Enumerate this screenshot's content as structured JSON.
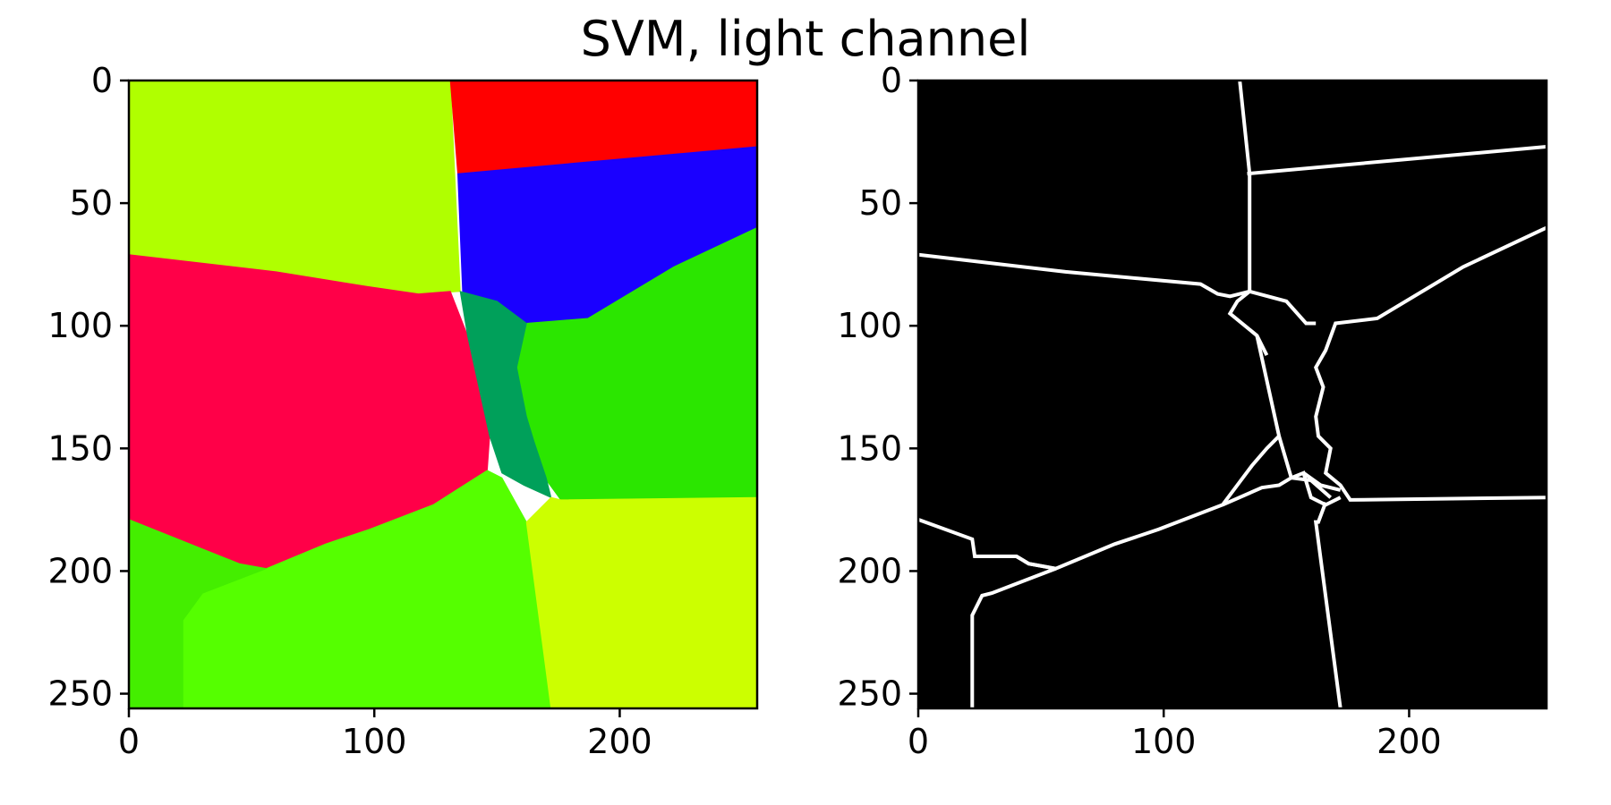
{
  "figure": {
    "title": "SVM, light channel"
  },
  "chart_data": [
    {
      "type": "heatmap",
      "title": "",
      "xlabel": "",
      "ylabel": "",
      "xlim": [
        0,
        256
      ],
      "ylim": [
        256,
        0
      ],
      "x_ticks": [
        0,
        100,
        200
      ],
      "y_ticks": [
        0,
        50,
        100,
        150,
        200,
        250
      ],
      "grid": false,
      "regions": [
        {
          "color": "#b0ff00",
          "points": [
            [
              0,
              0
            ],
            [
              131,
              0
            ],
            [
              135,
              86
            ],
            [
              118,
              87
            ],
            [
              97,
              84
            ],
            [
              60,
              78
            ],
            [
              0,
              71
            ]
          ]
        },
        {
          "color": "#ff0000",
          "points": [
            [
              131,
              0
            ],
            [
              256,
              0
            ],
            [
              256,
              27
            ],
            [
              134,
              38
            ]
          ]
        },
        {
          "color": "#1a00ff",
          "points": [
            [
              134,
              38
            ],
            [
              256,
              27
            ],
            [
              256,
              60
            ],
            [
              222,
              76
            ],
            [
              187,
              97
            ],
            [
              162,
              99
            ],
            [
              150,
              90
            ],
            [
              136,
              86
            ]
          ]
        },
        {
          "color": "#ff0048",
          "points": [
            [
              0,
              71
            ],
            [
              60,
              78
            ],
            [
              97,
              84
            ],
            [
              118,
              87
            ],
            [
              131,
              86
            ],
            [
              138,
              104
            ],
            [
              147,
              145
            ],
            [
              146,
              159
            ],
            [
              124,
              173
            ],
            [
              98,
              183
            ],
            [
              80,
              189
            ],
            [
              56,
              199
            ],
            [
              45,
              197
            ],
            [
              0,
              179
            ]
          ]
        },
        {
          "color": "#2be600",
          "points": [
            [
              162,
              99
            ],
            [
              187,
              97
            ],
            [
              222,
              76
            ],
            [
              256,
              60
            ],
            [
              256,
              170
            ],
            [
              176,
              171
            ],
            [
              168,
              160
            ],
            [
              165,
              147
            ],
            [
              162,
              137
            ],
            [
              158,
              117
            ]
          ]
        },
        {
          "color": "#00a05a",
          "points": [
            [
              135,
              86
            ],
            [
              150,
              90
            ],
            [
              162,
              99
            ],
            [
              158,
              117
            ],
            [
              162,
              137
            ],
            [
              165,
              147
            ],
            [
              170,
              162
            ],
            [
              172,
              170
            ],
            [
              161,
              165
            ],
            [
              152,
              160
            ],
            [
              147,
              145
            ],
            [
              138,
              104
            ]
          ]
        },
        {
          "color": "#55ff00",
          "points": [
            [
              22,
              220
            ],
            [
              22,
              256
            ],
            [
              172,
              256
            ],
            [
              162,
              180
            ],
            [
              152,
              162
            ],
            [
              146,
              159
            ],
            [
              124,
              173
            ],
            [
              98,
              183
            ],
            [
              80,
              189
            ],
            [
              56,
              199
            ],
            [
              30,
              209
            ]
          ]
        },
        {
          "color": "#44ee00",
          "points": [
            [
              0,
              179
            ],
            [
              45,
              197
            ],
            [
              56,
              199
            ],
            [
              30,
              209
            ],
            [
              22,
              220
            ],
            [
              22,
              256
            ],
            [
              0,
              256
            ]
          ]
        },
        {
          "color": "#ccff00",
          "points": [
            [
              162,
              180
            ],
            [
              172,
              170
            ],
            [
              176,
              171
            ],
            [
              256,
              170
            ],
            [
              256,
              256
            ],
            [
              172,
              256
            ]
          ]
        }
      ]
    },
    {
      "type": "heatmap",
      "title": "",
      "xlabel": "",
      "ylabel": "",
      "xlim": [
        0,
        256
      ],
      "ylim": [
        256,
        0
      ],
      "x_ticks": [
        0,
        100,
        200
      ],
      "y_ticks": [
        0,
        50,
        100,
        150,
        200,
        250
      ],
      "grid": false,
      "background": "#000000",
      "line_color": "#ffffff",
      "boundaries": [
        [
          [
            131,
            0
          ],
          [
            135,
            38
          ],
          [
            135,
            86
          ]
        ],
        [
          [
            134,
            38
          ],
          [
            256,
            27
          ]
        ],
        [
          [
            0,
            71
          ],
          [
            60,
            78
          ],
          [
            115,
            83
          ],
          [
            122,
            87
          ],
          [
            127,
            88
          ],
          [
            135,
            86
          ]
        ],
        [
          [
            256,
            60
          ],
          [
            222,
            76
          ],
          [
            187,
            97
          ],
          [
            170,
            99
          ],
          [
            166,
            110
          ],
          [
            162,
            117
          ],
          [
            165,
            125
          ],
          [
            162,
            137
          ],
          [
            163,
            145
          ],
          [
            168,
            150
          ],
          [
            166,
            160
          ],
          [
            172,
            165
          ],
          [
            176,
            171
          ],
          [
            256,
            170
          ]
        ],
        [
          [
            135,
            86
          ],
          [
            130,
            90
          ],
          [
            127,
            95
          ],
          [
            138,
            104
          ],
          [
            142,
            112
          ]
        ],
        [
          [
            138,
            104
          ],
          [
            147,
            145
          ],
          [
            152,
            162
          ],
          [
            160,
            163
          ],
          [
            168,
            170
          ]
        ],
        [
          [
            135,
            86
          ],
          [
            150,
            90
          ],
          [
            158,
            99
          ],
          [
            162,
            99
          ]
        ],
        [
          [
            147,
            145
          ],
          [
            142,
            150
          ],
          [
            136,
            157
          ],
          [
            124,
            173
          ],
          [
            98,
            183
          ],
          [
            80,
            189
          ],
          [
            56,
            199
          ],
          [
            45,
            197
          ],
          [
            40,
            194
          ],
          [
            23,
            194
          ],
          [
            22,
            187
          ],
          [
            0,
            179
          ]
        ],
        [
          [
            40,
            194
          ],
          [
            45,
            197
          ],
          [
            56,
            199
          ]
        ],
        [
          [
            56,
            199
          ],
          [
            30,
            209
          ],
          [
            26,
            210
          ],
          [
            22,
            218
          ],
          [
            22,
            256
          ]
        ],
        [
          [
            124,
            173
          ],
          [
            140,
            166
          ],
          [
            147,
            165
          ],
          [
            152,
            162
          ]
        ],
        [
          [
            152,
            162
          ],
          [
            157,
            160
          ],
          [
            160,
            170
          ],
          [
            166,
            173
          ],
          [
            172,
            170
          ]
        ],
        [
          [
            157,
            160
          ],
          [
            164,
            165
          ],
          [
            172,
            167
          ]
        ],
        [
          [
            166,
            172
          ],
          [
            163,
            180
          ],
          [
            162,
            180
          ],
          [
            172,
            256
          ]
        ]
      ]
    }
  ]
}
